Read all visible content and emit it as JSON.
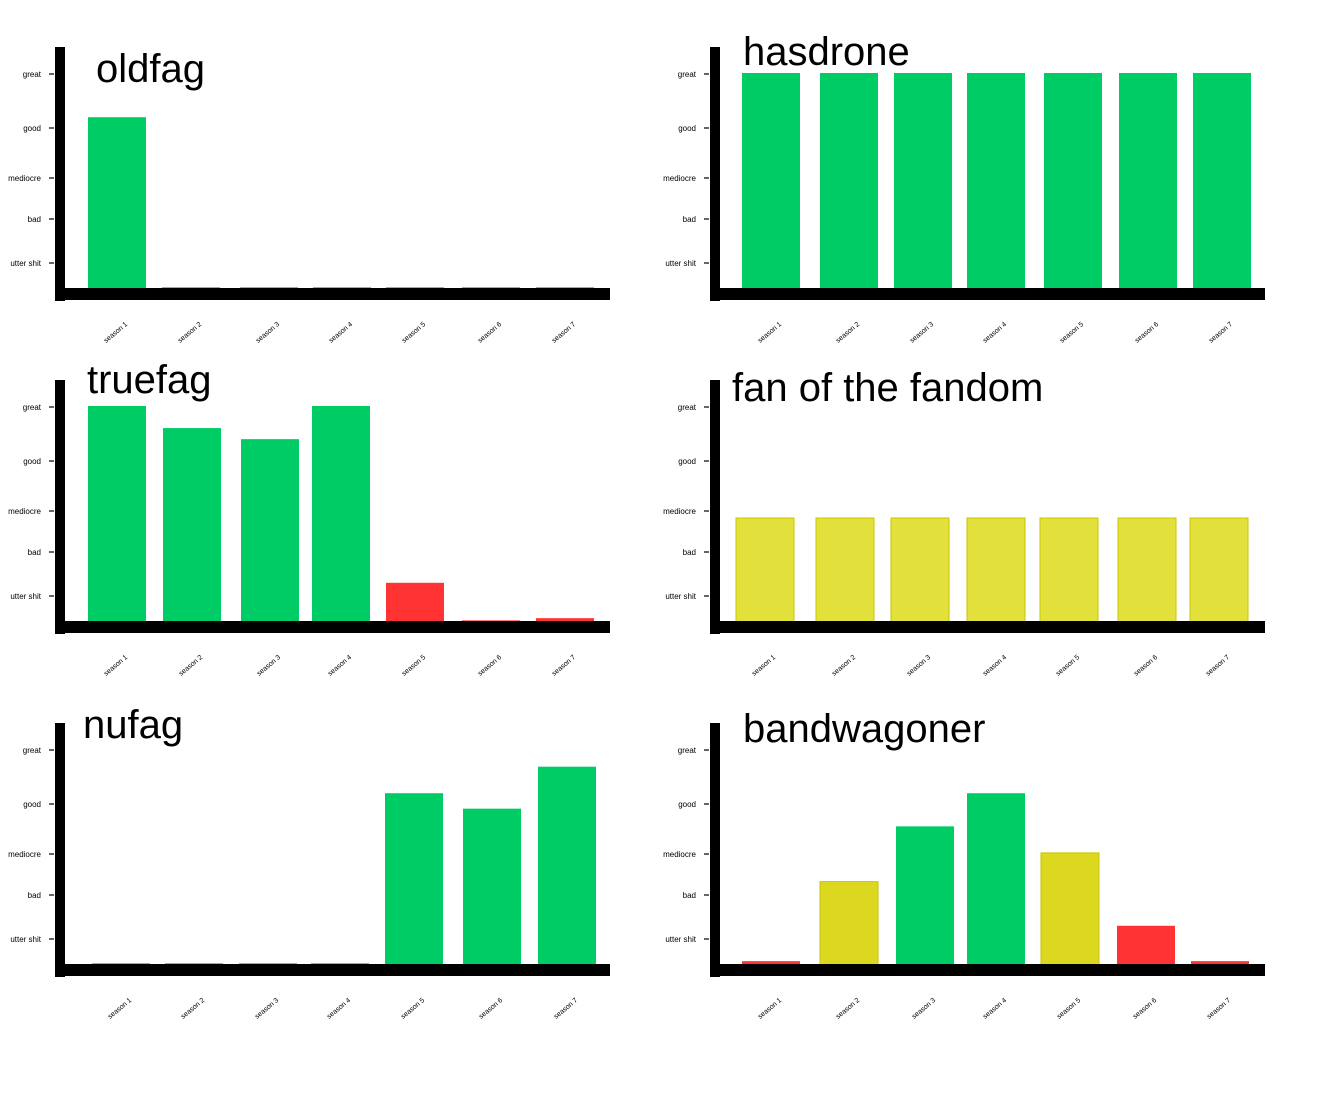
{
  "colors": {
    "green": "#00cc66",
    "red": "#ff3333",
    "yellow": "#e2e03a",
    "olive_yellow": "#dcd820",
    "axis": "#000000"
  },
  "chart_data": [
    {
      "type": "bar",
      "title": "oldfag",
      "categories": [
        "season 1",
        "season 2",
        "season 3",
        "season 4",
        "season 5",
        "season 6",
        "season 7"
      ],
      "y_levels": [
        "great",
        "good",
        "mediocre",
        "bad",
        "utter shit"
      ],
      "y_level_values": [
        5,
        4,
        3,
        2,
        1
      ],
      "ylim": [
        0,
        5.4
      ],
      "values": [
        4.0,
        0.15,
        0.15,
        0.15,
        0.15,
        0.15,
        0.15
      ],
      "bar_colors": [
        "green",
        "red",
        "red",
        "red",
        "red",
        "red",
        "red"
      ]
    },
    {
      "type": "bar",
      "title": "hasdrone",
      "categories": [
        "season 1",
        "season 2",
        "season 3",
        "season 4",
        "season 5",
        "season 6",
        "season 7"
      ],
      "y_levels": [
        "great",
        "good",
        "mediocre",
        "bad",
        "utter shit"
      ],
      "y_level_values": [
        5,
        4,
        3,
        2,
        1
      ],
      "ylim": [
        0,
        5.4
      ],
      "values": [
        5,
        5,
        5,
        5,
        5,
        5,
        5
      ],
      "bar_colors": [
        "green",
        "green",
        "green",
        "green",
        "green",
        "green",
        "green"
      ]
    },
    {
      "type": "bar",
      "title": "truefag",
      "categories": [
        "season 1",
        "season 2",
        "season 3",
        "season 4",
        "season 5",
        "season 6",
        "season 7"
      ],
      "y_levels": [
        "great",
        "good",
        "mediocre",
        "bad",
        "utter shit"
      ],
      "y_level_values": [
        5,
        4,
        3,
        2,
        1
      ],
      "ylim": [
        0,
        5.4
      ],
      "values": [
        5.0,
        4.5,
        4.25,
        5.0,
        1.0,
        0.15,
        0.2
      ],
      "bar_colors": [
        "green",
        "green",
        "green",
        "green",
        "red",
        "red",
        "red"
      ]
    },
    {
      "type": "bar",
      "title": "fan of the fandom",
      "categories": [
        "season 1",
        "season 2",
        "season 3",
        "season 4",
        "season 5",
        "season 6",
        "season 7"
      ],
      "y_levels": [
        "great",
        "good",
        "mediocre",
        "bad",
        "utter shit"
      ],
      "y_level_values": [
        5,
        4,
        3,
        2,
        1
      ],
      "ylim": [
        0,
        5.4
      ],
      "values": [
        1.9,
        1.9,
        1.9,
        1.9,
        1.9,
        1.9,
        1.9
      ],
      "bar_colors": [
        "yellow",
        "yellow",
        "yellow",
        "yellow",
        "yellow",
        "yellow",
        "yellow"
      ]
    },
    {
      "type": "bar",
      "title": "nufag",
      "categories": [
        "season 1",
        "season 2",
        "season 3",
        "season 4",
        "season 5",
        "season 6",
        "season 7"
      ],
      "y_levels": [
        "great",
        "good",
        "mediocre",
        "bad",
        "utter shit"
      ],
      "y_level_values": [
        5,
        4,
        3,
        2,
        1
      ],
      "ylim": [
        0,
        5.6
      ],
      "values": [
        0.15,
        0.15,
        0.15,
        0.15,
        4.0,
        3.65,
        4.6
      ],
      "bar_colors": [
        "red",
        "red",
        "red",
        "red",
        "green",
        "green",
        "green"
      ]
    },
    {
      "type": "bar",
      "title": "bandwagoner",
      "categories": [
        "season 1",
        "season 2",
        "season 3",
        "season 4",
        "season 5",
        "season 6",
        "season 7"
      ],
      "y_levels": [
        "great",
        "good",
        "mediocre",
        "bad",
        "utter shit"
      ],
      "y_level_values": [
        5,
        4,
        3,
        2,
        1
      ],
      "ylim": [
        0,
        5.4
      ],
      "values": [
        0.2,
        2.0,
        3.25,
        4.0,
        2.65,
        1.0,
        0.2
      ],
      "bar_colors": [
        "red",
        "olive_yellow",
        "green",
        "green",
        "olive_yellow",
        "red",
        "red"
      ]
    }
  ]
}
